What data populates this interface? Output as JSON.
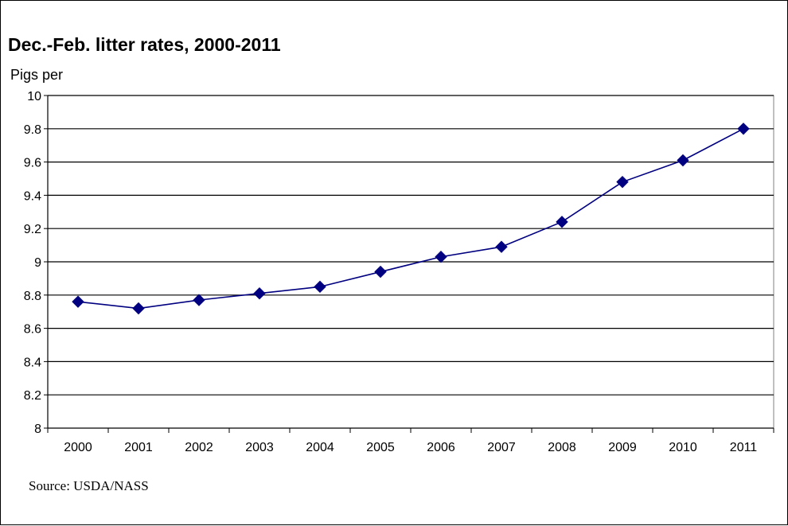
{
  "chart_data": {
    "type": "line",
    "title": "Dec.-Feb. litter rates, 2000-2011",
    "ylabel": "Pigs per",
    "xlabel": "",
    "categories": [
      "2000",
      "2001",
      "2002",
      "2003",
      "2004",
      "2005",
      "2006",
      "2007",
      "2008",
      "2009",
      "2010",
      "2011"
    ],
    "series": [
      {
        "values": [
          8.76,
          8.72,
          8.77,
          8.81,
          8.85,
          8.94,
          9.03,
          9.09,
          9.24,
          9.48,
          9.61,
          9.8
        ],
        "color": "#000080",
        "marker": "diamond"
      }
    ],
    "ylim": [
      8,
      10
    ],
    "yticks": [
      "8",
      "8.2",
      "8.4",
      "8.6",
      "8.8",
      "9",
      "9.2",
      "9.4",
      "9.6",
      "9.8",
      "10"
    ],
    "grid": true,
    "source": "Source: USDA/NASS"
  }
}
